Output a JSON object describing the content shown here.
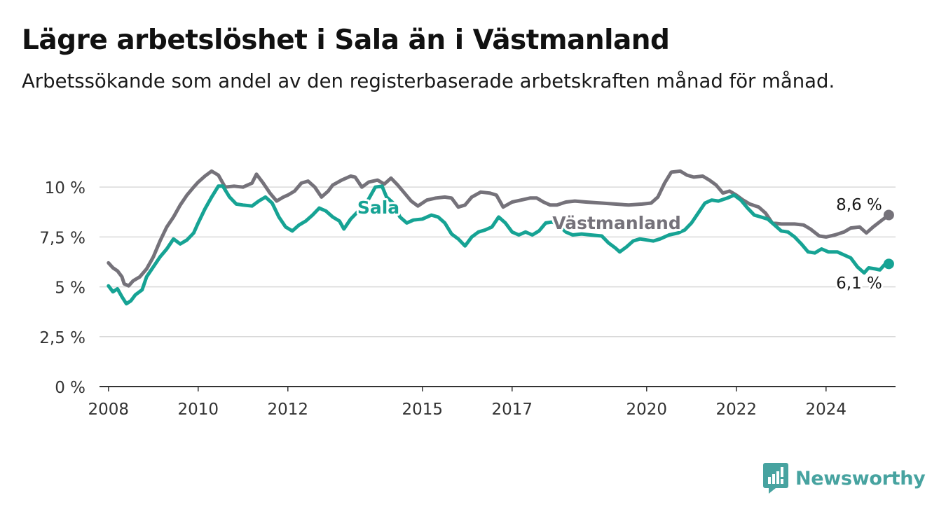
{
  "title": "Lägre arbetslöshet i Sala än i Västmanland",
  "subtitle": "Arbetssökande som andel av den registerbaserade arbetskraften månad för månad.",
  "brand": {
    "name": "Newsworthy",
    "icon": "newsworthy-logo-icon",
    "color": "#47a3a0"
  },
  "colors": {
    "sala": "#16a394",
    "vastmanland": "#75727a",
    "grid": "#d9d9d9",
    "axis": "#333333"
  },
  "chart_data": {
    "type": "line",
    "ylim": [
      0,
      11.2
    ],
    "y_ticks": [
      {
        "value": 0,
        "label": "0 %"
      },
      {
        "value": 2.5,
        "label": "2,5 %"
      },
      {
        "value": 5,
        "label": "5 %"
      },
      {
        "value": 7.5,
        "label": "7,5 %"
      },
      {
        "value": 10,
        "label": "10 %"
      }
    ],
    "xlim": [
      2007.8,
      2025.55
    ],
    "x_ticks": [
      {
        "value": 2008.0,
        "label": "2008"
      },
      {
        "value": 2010.0,
        "label": "2010"
      },
      {
        "value": 2012.0,
        "label": "2012"
      },
      {
        "value": 2015.0,
        "label": "2015"
      },
      {
        "value": 2017.0,
        "label": "2017"
      },
      {
        "value": 2020.0,
        "label": "2020"
      },
      {
        "value": 2022.0,
        "label": "2022"
      },
      {
        "value": 2024.0,
        "label": "2024"
      }
    ],
    "grid": true,
    "series": [
      {
        "name": "Västmanland",
        "last_label": "8,6 %",
        "points": [
          [
            2008.0,
            6.2
          ],
          [
            2008.1,
            5.95
          ],
          [
            2008.2,
            5.8
          ],
          [
            2008.3,
            5.5
          ],
          [
            2008.35,
            5.15
          ],
          [
            2008.45,
            5.05
          ],
          [
            2008.55,
            5.3
          ],
          [
            2008.7,
            5.5
          ],
          [
            2008.85,
            5.9
          ],
          [
            2009.0,
            6.5
          ],
          [
            2009.15,
            7.3
          ],
          [
            2009.3,
            8.0
          ],
          [
            2009.45,
            8.5
          ],
          [
            2009.6,
            9.1
          ],
          [
            2009.75,
            9.6
          ],
          [
            2009.9,
            10.0
          ],
          [
            2010.0,
            10.25
          ],
          [
            2010.15,
            10.55
          ],
          [
            2010.3,
            10.8
          ],
          [
            2010.45,
            10.6
          ],
          [
            2010.6,
            10.0
          ],
          [
            2010.8,
            10.05
          ],
          [
            2011.0,
            10.0
          ],
          [
            2011.2,
            10.2
          ],
          [
            2011.3,
            10.65
          ],
          [
            2011.45,
            10.2
          ],
          [
            2011.6,
            9.7
          ],
          [
            2011.75,
            9.3
          ],
          [
            2011.9,
            9.5
          ],
          [
            2012.0,
            9.6
          ],
          [
            2012.15,
            9.8
          ],
          [
            2012.3,
            10.2
          ],
          [
            2012.45,
            10.3
          ],
          [
            2012.6,
            10.0
          ],
          [
            2012.75,
            9.5
          ],
          [
            2012.9,
            9.8
          ],
          [
            2013.0,
            10.1
          ],
          [
            2013.2,
            10.35
          ],
          [
            2013.4,
            10.55
          ],
          [
            2013.5,
            10.5
          ],
          [
            2013.65,
            10.0
          ],
          [
            2013.8,
            10.25
          ],
          [
            2014.0,
            10.35
          ],
          [
            2014.15,
            10.15
          ],
          [
            2014.3,
            10.45
          ],
          [
            2014.45,
            10.1
          ],
          [
            2014.6,
            9.7
          ],
          [
            2014.75,
            9.3
          ],
          [
            2014.9,
            9.05
          ],
          [
            2015.1,
            9.35
          ],
          [
            2015.3,
            9.45
          ],
          [
            2015.5,
            9.5
          ],
          [
            2015.65,
            9.45
          ],
          [
            2015.8,
            9.0
          ],
          [
            2015.95,
            9.1
          ],
          [
            2016.1,
            9.5
          ],
          [
            2016.3,
            9.75
          ],
          [
            2016.5,
            9.7
          ],
          [
            2016.65,
            9.6
          ],
          [
            2016.8,
            9.0
          ],
          [
            2017.0,
            9.25
          ],
          [
            2017.2,
            9.35
          ],
          [
            2017.4,
            9.45
          ],
          [
            2017.55,
            9.45
          ],
          [
            2017.7,
            9.25
          ],
          [
            2017.85,
            9.1
          ],
          [
            2018.0,
            9.1
          ],
          [
            2018.2,
            9.25
          ],
          [
            2018.4,
            9.3
          ],
          [
            2018.65,
            9.25
          ],
          [
            2019.0,
            9.2
          ],
          [
            2019.3,
            9.15
          ],
          [
            2019.6,
            9.1
          ],
          [
            2019.9,
            9.15
          ],
          [
            2020.1,
            9.2
          ],
          [
            2020.25,
            9.5
          ],
          [
            2020.4,
            10.2
          ],
          [
            2020.55,
            10.75
          ],
          [
            2020.75,
            10.8
          ],
          [
            2020.9,
            10.6
          ],
          [
            2021.05,
            10.5
          ],
          [
            2021.25,
            10.55
          ],
          [
            2021.4,
            10.35
          ],
          [
            2021.55,
            10.1
          ],
          [
            2021.7,
            9.7
          ],
          [
            2021.85,
            9.8
          ],
          [
            2022.0,
            9.6
          ],
          [
            2022.15,
            9.35
          ],
          [
            2022.3,
            9.15
          ],
          [
            2022.5,
            9.0
          ],
          [
            2022.65,
            8.7
          ],
          [
            2022.8,
            8.2
          ],
          [
            2023.0,
            8.15
          ],
          [
            2023.3,
            8.15
          ],
          [
            2023.5,
            8.1
          ],
          [
            2023.65,
            7.9
          ],
          [
            2023.85,
            7.55
          ],
          [
            2024.0,
            7.5
          ],
          [
            2024.2,
            7.6
          ],
          [
            2024.4,
            7.75
          ],
          [
            2024.55,
            7.95
          ],
          [
            2024.75,
            8.0
          ],
          [
            2024.9,
            7.7
          ],
          [
            2025.05,
            8.0
          ],
          [
            2025.25,
            8.35
          ],
          [
            2025.4,
            8.6
          ]
        ]
      },
      {
        "name": "Sala",
        "last_label": "6,1 %",
        "points": [
          [
            2008.0,
            5.05
          ],
          [
            2008.1,
            4.75
          ],
          [
            2008.2,
            4.9
          ],
          [
            2008.3,
            4.5
          ],
          [
            2008.4,
            4.15
          ],
          [
            2008.5,
            4.3
          ],
          [
            2008.6,
            4.6
          ],
          [
            2008.75,
            4.85
          ],
          [
            2008.85,
            5.5
          ],
          [
            2009.0,
            6.0
          ],
          [
            2009.15,
            6.5
          ],
          [
            2009.3,
            6.9
          ],
          [
            2009.45,
            7.4
          ],
          [
            2009.6,
            7.15
          ],
          [
            2009.75,
            7.35
          ],
          [
            2009.9,
            7.7
          ],
          [
            2010.0,
            8.2
          ],
          [
            2010.15,
            8.9
          ],
          [
            2010.3,
            9.5
          ],
          [
            2010.45,
            10.05
          ],
          [
            2010.55,
            10.05
          ],
          [
            2010.7,
            9.5
          ],
          [
            2010.85,
            9.15
          ],
          [
            2011.0,
            9.1
          ],
          [
            2011.2,
            9.05
          ],
          [
            2011.35,
            9.3
          ],
          [
            2011.5,
            9.5
          ],
          [
            2011.65,
            9.2
          ],
          [
            2011.8,
            8.5
          ],
          [
            2011.95,
            8.0
          ],
          [
            2012.1,
            7.8
          ],
          [
            2012.25,
            8.1
          ],
          [
            2012.4,
            8.3
          ],
          [
            2012.55,
            8.6
          ],
          [
            2012.7,
            8.95
          ],
          [
            2012.85,
            8.8
          ],
          [
            2013.0,
            8.5
          ],
          [
            2013.15,
            8.3
          ],
          [
            2013.25,
            7.9
          ],
          [
            2013.4,
            8.4
          ],
          [
            2013.55,
            8.75
          ],
          [
            2013.7,
            9.0
          ],
          [
            2013.85,
            9.6
          ],
          [
            2013.95,
            10.0
          ],
          [
            2014.1,
            10.05
          ],
          [
            2014.2,
            9.5
          ],
          [
            2014.35,
            9.2
          ],
          [
            2014.5,
            8.5
          ],
          [
            2014.65,
            8.2
          ],
          [
            2014.8,
            8.35
          ],
          [
            2015.0,
            8.4
          ],
          [
            2015.2,
            8.6
          ],
          [
            2015.35,
            8.5
          ],
          [
            2015.5,
            8.2
          ],
          [
            2015.65,
            7.65
          ],
          [
            2015.8,
            7.4
          ],
          [
            2015.95,
            7.05
          ],
          [
            2016.1,
            7.5
          ],
          [
            2016.25,
            7.75
          ],
          [
            2016.4,
            7.85
          ],
          [
            2016.55,
            8.0
          ],
          [
            2016.7,
            8.5
          ],
          [
            2016.85,
            8.2
          ],
          [
            2017.0,
            7.75
          ],
          [
            2017.15,
            7.6
          ],
          [
            2017.3,
            7.75
          ],
          [
            2017.45,
            7.6
          ],
          [
            2017.6,
            7.8
          ],
          [
            2017.75,
            8.2
          ],
          [
            2017.9,
            8.25
          ],
          [
            2018.05,
            8.05
          ],
          [
            2018.2,
            7.75
          ],
          [
            2018.35,
            7.6
          ],
          [
            2018.55,
            7.65
          ],
          [
            2018.75,
            7.6
          ],
          [
            2019.0,
            7.55
          ],
          [
            2019.15,
            7.2
          ],
          [
            2019.3,
            6.95
          ],
          [
            2019.4,
            6.75
          ],
          [
            2019.55,
            7.0
          ],
          [
            2019.7,
            7.3
          ],
          [
            2019.85,
            7.4
          ],
          [
            2020.0,
            7.35
          ],
          [
            2020.15,
            7.3
          ],
          [
            2020.3,
            7.4
          ],
          [
            2020.5,
            7.6
          ],
          [
            2020.7,
            7.7
          ],
          [
            2020.85,
            7.85
          ],
          [
            2021.0,
            8.2
          ],
          [
            2021.15,
            8.7
          ],
          [
            2021.3,
            9.2
          ],
          [
            2021.45,
            9.35
          ],
          [
            2021.6,
            9.3
          ],
          [
            2021.8,
            9.45
          ],
          [
            2021.95,
            9.6
          ],
          [
            2022.1,
            9.35
          ],
          [
            2022.25,
            8.95
          ],
          [
            2022.4,
            8.6
          ],
          [
            2022.55,
            8.5
          ],
          [
            2022.7,
            8.4
          ],
          [
            2022.85,
            8.1
          ],
          [
            2023.0,
            7.8
          ],
          [
            2023.15,
            7.75
          ],
          [
            2023.3,
            7.5
          ],
          [
            2023.45,
            7.15
          ],
          [
            2023.6,
            6.75
          ],
          [
            2023.75,
            6.7
          ],
          [
            2023.9,
            6.9
          ],
          [
            2024.05,
            6.75
          ],
          [
            2024.25,
            6.75
          ],
          [
            2024.4,
            6.6
          ],
          [
            2024.55,
            6.45
          ],
          [
            2024.7,
            6.0
          ],
          [
            2024.85,
            5.7
          ],
          [
            2024.95,
            5.95
          ],
          [
            2025.1,
            5.9
          ],
          [
            2025.2,
            5.85
          ],
          [
            2025.3,
            6.1
          ],
          [
            2025.4,
            6.15
          ]
        ]
      }
    ]
  }
}
